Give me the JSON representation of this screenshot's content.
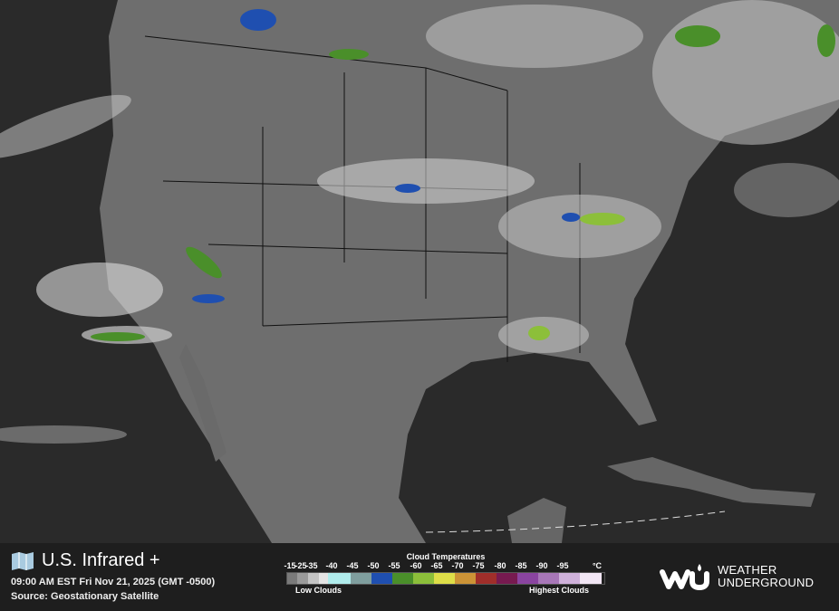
{
  "header": {
    "title": "U.S. Infrared +",
    "timestamp": "09:00 AM EST Fri Nov 21, 2025 (GMT -0500)",
    "source": "Source: Geostationary Satellite",
    "icon": "map-icon"
  },
  "legend": {
    "title": "Cloud Temperatures",
    "ticks": [
      "-15",
      "-25",
      "-35",
      "-40",
      "-45",
      "-50",
      "-55",
      "-60",
      "-65",
      "-70",
      "-75",
      "-80",
      "-85",
      "-90",
      "-95"
    ],
    "unit": "°C",
    "low_label": "Low Clouds",
    "high_label": "Highest Clouds",
    "colors": [
      "#7a7a7a",
      "#9a9a9a",
      "#c4c4c4",
      "#e4e4e4",
      "#b0ecec",
      "#7f9e9e",
      "#1f4fb0",
      "#4a8f2a",
      "#8cbf3a",
      "#dede48",
      "#cc9336",
      "#a02e2a",
      "#771a50",
      "#8a44a0",
      "#a877b8",
      "#cfb1da",
      "#f2e6f4"
    ]
  },
  "brand": {
    "line1": "WEATHER",
    "line2": "UNDERGROUND"
  }
}
